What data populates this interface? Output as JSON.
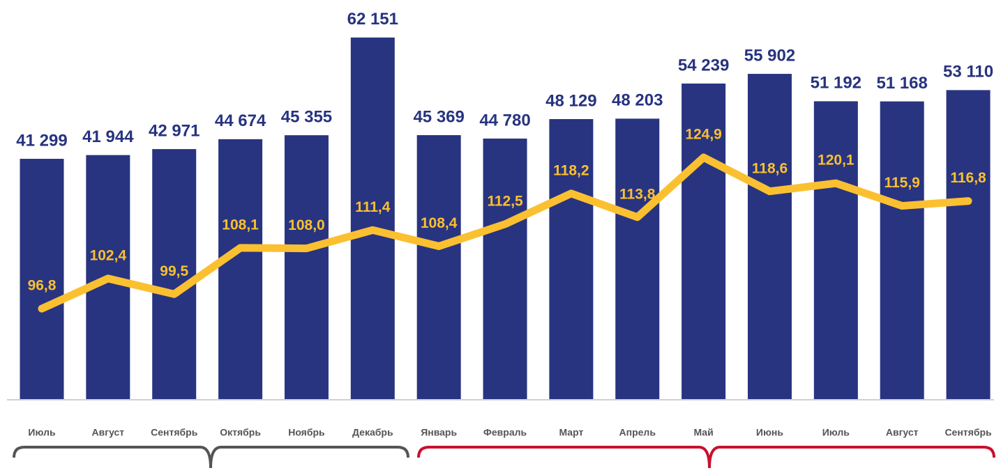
{
  "chart_data": {
    "type": "bar",
    "categories": [
      "Июль",
      "Август",
      "Сентябрь",
      "Октябрь",
      "Ноябрь",
      "Декабрь",
      "Январь",
      "Февраль",
      "Март",
      "Апрель",
      "Май",
      "Июнь",
      "Июль",
      "Август",
      "Сентябрь"
    ],
    "series": [
      {
        "type": "bar",
        "color": "#283480",
        "values": [
          41299,
          41944,
          42971,
          44674,
          45355,
          62151,
          45369,
          44780,
          48129,
          48203,
          54239,
          55902,
          51192,
          51168,
          53110
        ],
        "value_labels": [
          "41 299",
          "41 944",
          "42 971",
          "44 674",
          "45 355",
          "62 151",
          "45 369",
          "44 780",
          "48 129",
          "48 203",
          "54 239",
          "55 902",
          "51 192",
          "51 168",
          "53 110"
        ]
      },
      {
        "type": "line",
        "axis": "y2",
        "color": "#fbc030",
        "values": [
          96.8,
          102.4,
          99.5,
          108.1,
          108.0,
          111.4,
          108.4,
          112.5,
          118.2,
          113.8,
          124.9,
          118.6,
          120.1,
          115.9,
          116.8
        ],
        "value_labels": [
          "96,8",
          "102,4",
          "99,5",
          "108,1",
          "108,0",
          "111,4",
          "108,4",
          "112,5",
          "118,2",
          "113,8",
          "124,9",
          "118,6",
          "120,1",
          "115,9",
          "116,8"
        ]
      }
    ],
    "ylim": [
      0,
      68000
    ],
    "y2lim": [
      80,
      153.5
    ]
  }
}
